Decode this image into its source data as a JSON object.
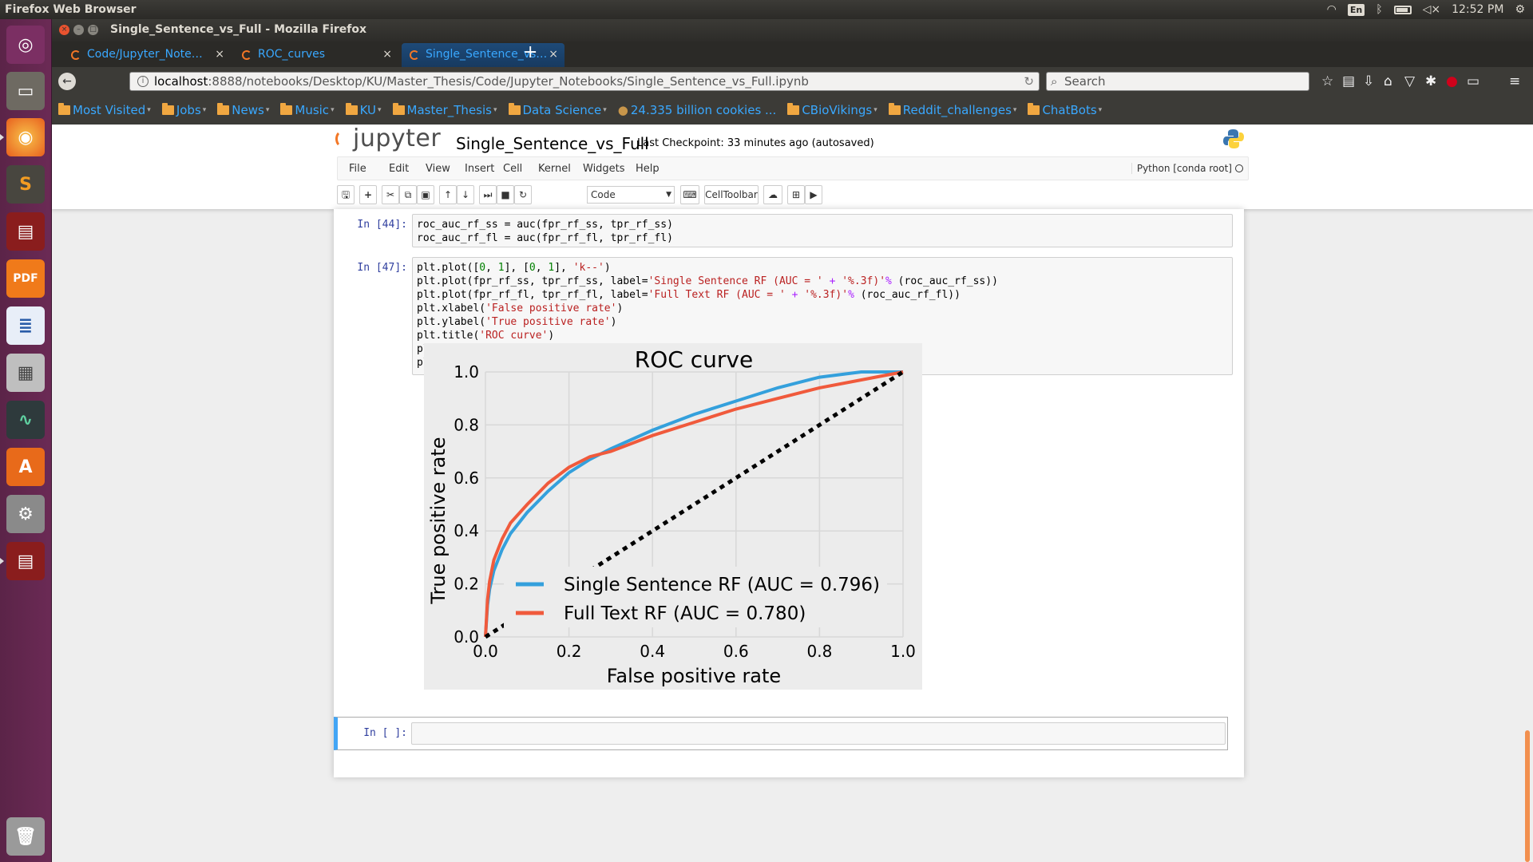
{
  "topbar": {
    "app_name": "Firefox Web Browser",
    "language": "En",
    "time": "12:52 PM"
  },
  "window": {
    "title": "Single_Sentence_vs_Full - Mozilla Firefox"
  },
  "tabs": [
    {
      "label": "Code/Jupyter_Note…",
      "close": "×"
    },
    {
      "label": "ROC_curves",
      "close": "×"
    },
    {
      "label": "Single_Sentence_vs…",
      "close": "×"
    }
  ],
  "newtab": "+",
  "url": {
    "host": "localhost",
    "rest": ":8888/notebooks/Desktop/KU/Master_Thesis/Code/Jupyter_Notebooks/Single_Sentence_vs_Full.ipynb"
  },
  "search": {
    "placeholder": "Search"
  },
  "bookmarks": [
    "Most Visited",
    "Jobs",
    "News",
    "Music",
    "KU",
    "Master_Thesis",
    "Data Science",
    "24.335 billion cookies ...",
    "CBioVikings",
    "Reddit_challenges",
    "ChatBots"
  ],
  "jupyter": {
    "logo": "jupyter",
    "notebook_name": "Single_Sentence_vs_Full",
    "checkpoint": "Last Checkpoint: 33 minutes ago (autosaved)",
    "menu": [
      "File",
      "Edit",
      "View",
      "Insert",
      "Cell",
      "Kernel",
      "Widgets",
      "Help"
    ],
    "kernel": "Python [conda root]",
    "cell_type": "Code",
    "celltoolbar": "CellToolbar"
  },
  "cells": {
    "c44_prompt": "In [44]:",
    "c44_line1": "roc_auc_rf_ss = auc(fpr_rf_ss, tpr_rf_ss)",
    "c44_line2": "roc_auc_rf_fl = auc(fpr_rf_fl, tpr_rf_fl)",
    "c47_prompt": "In [47]:",
    "empty_prompt": "In [ ]:"
  },
  "chart_data": {
    "type": "line",
    "title": "ROC curve",
    "xlabel": "False positive rate",
    "ylabel": "True positive rate",
    "xlim": [
      0.0,
      1.0
    ],
    "ylim": [
      0.0,
      1.0
    ],
    "xticks": [
      "0.0",
      "0.2",
      "0.4",
      "0.6",
      "0.8",
      "1.0"
    ],
    "yticks": [
      "0.0",
      "0.2",
      "0.4",
      "0.6",
      "0.8",
      "1.0"
    ],
    "grid": true,
    "legend_position": "lower-right",
    "series": [
      {
        "name": "Single Sentence RF (AUC = 0.796)",
        "color": "#34a0dc",
        "x": [
          0.0,
          0.005,
          0.01,
          0.02,
          0.04,
          0.06,
          0.1,
          0.15,
          0.2,
          0.25,
          0.3,
          0.4,
          0.5,
          0.6,
          0.7,
          0.8,
          0.9,
          1.0
        ],
        "y": [
          0.0,
          0.12,
          0.18,
          0.25,
          0.33,
          0.39,
          0.47,
          0.55,
          0.62,
          0.67,
          0.71,
          0.78,
          0.84,
          0.89,
          0.94,
          0.98,
          1.0,
          1.0
        ]
      },
      {
        "name": "Full Text RF (AUC = 0.780)",
        "color": "#f05a3c",
        "x": [
          0.0,
          0.005,
          0.01,
          0.02,
          0.04,
          0.06,
          0.1,
          0.15,
          0.2,
          0.25,
          0.3,
          0.4,
          0.5,
          0.6,
          0.7,
          0.8,
          0.9,
          1.0
        ],
        "y": [
          0.0,
          0.14,
          0.21,
          0.29,
          0.37,
          0.43,
          0.5,
          0.58,
          0.64,
          0.68,
          0.7,
          0.76,
          0.81,
          0.86,
          0.9,
          0.94,
          0.97,
          1.0
        ]
      },
      {
        "name": "",
        "color": "#000000",
        "style": "dotted",
        "x": [
          0,
          1
        ],
        "y": [
          0,
          1
        ]
      }
    ]
  }
}
